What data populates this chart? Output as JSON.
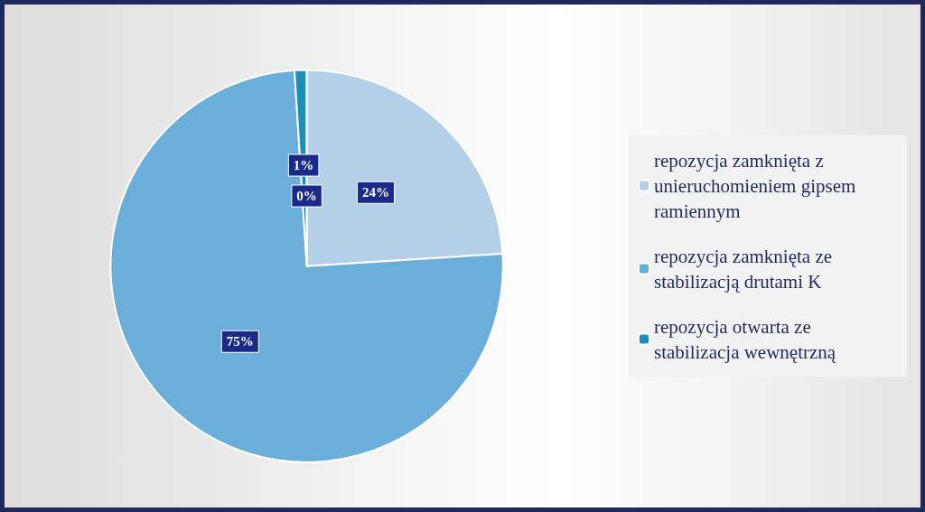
{
  "chart_data": {
    "type": "pie",
    "categories": [
      "repozycja zamknięta z unieruchomieniem gipsem ramiennym",
      "repozycja zamknięta ze stabilizacją drutami K",
      "repozycja otwarta ze stabilizacja wewnętrzną",
      null
    ],
    "values": [
      24,
      75,
      1,
      0
    ],
    "colors": [
      "#b4d0e8",
      "#6aaed9",
      "#1a8fb8",
      "#2a6f9a"
    ],
    "value_labels": [
      "24%",
      "75%",
      "1%",
      "0%"
    ],
    "legend": "right"
  }
}
